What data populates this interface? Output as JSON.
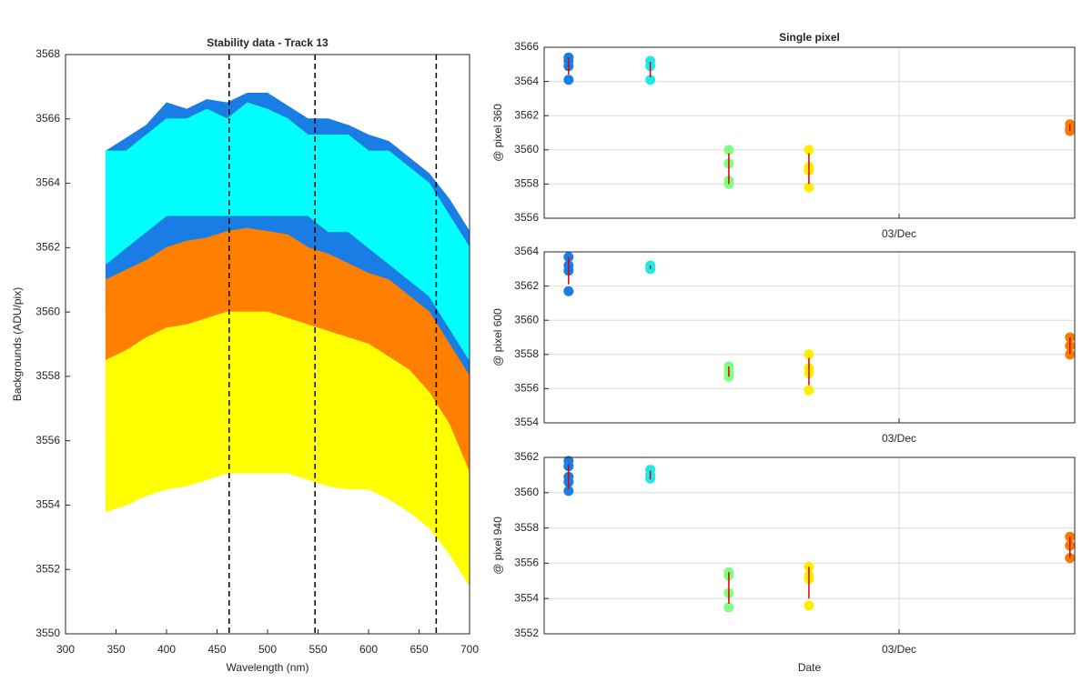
{
  "chart_data": [
    {
      "type": "band",
      "title": "Stability data - Track 13",
      "xlabel": "Wavelength (nm)",
      "ylabel": "Backgrounds (ADU/pix)",
      "x": [
        340,
        360,
        380,
        400,
        420,
        440,
        460,
        480,
        500,
        520,
        540,
        560,
        580,
        600,
        620,
        640,
        660,
        680,
        700
      ],
      "series": [
        {
          "color": "#1a7de6",
          "upper": [
            3565,
            3565.4,
            3565.8,
            3566.5,
            3566.3,
            3566.6,
            3566.5,
            3566.8,
            3566.8,
            3566.4,
            3566,
            3566,
            3565.8,
            3565.5,
            3565.3,
            3564.8,
            3564.3,
            3563.5,
            3562.5
          ],
          "lower": [
            3560,
            3560.5,
            3561,
            3561.5,
            3561.5,
            3561.5,
            3561.5,
            3561.5,
            3561.5,
            3561.5,
            3561.5,
            3561,
            3561,
            3560.5,
            3560,
            3559.5,
            3559,
            3558,
            3557.5
          ]
        },
        {
          "color": "#00ffff",
          "upper": [
            3565,
            3565,
            3565.5,
            3566,
            3566,
            3566.3,
            3566,
            3566.5,
            3566.3,
            3566,
            3565.5,
            3565.5,
            3565.5,
            3565,
            3565,
            3564.5,
            3564,
            3563,
            3562
          ],
          "lower": [
            3561.5,
            3562,
            3562.5,
            3563,
            3563,
            3563,
            3563,
            3563,
            3563,
            3563,
            3563,
            3562.5,
            3562.5,
            3562,
            3561.5,
            3561,
            3560.5,
            3559.5,
            3558.5
          ]
        },
        {
          "color": "#ff8000",
          "upper": [
            3561,
            3561.3,
            3561.6,
            3562,
            3562.2,
            3562.3,
            3562.5,
            3562.6,
            3562.5,
            3562.4,
            3562,
            3561.8,
            3561.5,
            3561.2,
            3561,
            3560.5,
            3560,
            3559,
            3558
          ],
          "lower": [
            3556.5,
            3556.8,
            3557,
            3557.3,
            3557.5,
            3557.5,
            3557.6,
            3557.7,
            3557.7,
            3557.6,
            3557.5,
            3557.3,
            3557,
            3557,
            3556.8,
            3556.5,
            3556,
            3555.5,
            3555
          ]
        },
        {
          "color": "#ffff00",
          "upper": [
            3558.5,
            3558.8,
            3559.2,
            3559.5,
            3559.6,
            3559.8,
            3560,
            3560,
            3560,
            3559.8,
            3559.6,
            3559.4,
            3559.2,
            3559,
            3558.6,
            3558.2,
            3557.5,
            3556.5,
            3555
          ],
          "lower": [
            3553.8,
            3554,
            3554.3,
            3554.5,
            3554.6,
            3554.8,
            3555,
            3555,
            3555,
            3555,
            3554.8,
            3554.6,
            3554.5,
            3554.5,
            3554.2,
            3553.8,
            3553.3,
            3552.5,
            3551.5
          ]
        }
      ],
      "vlines": [
        462,
        547,
        667
      ],
      "xlim": [
        300,
        700
      ],
      "xticks": [
        300,
        350,
        400,
        450,
        500,
        550,
        600,
        650,
        700
      ],
      "ylim": [
        3550,
        3568
      ],
      "yticks": [
        3550,
        3552,
        3554,
        3556,
        3558,
        3560,
        3562,
        3564,
        3566,
        3568
      ],
      "grid": false
    },
    {
      "type": "scatter",
      "title": "Single pixel",
      "ylabel": "@ pixel 360",
      "xlim": [
        0,
        1
      ],
      "xticks": [
        {
          "value": 0.669,
          "label": "03/Dec"
        }
      ],
      "ylim": [
        3556,
        3566
      ],
      "yticks": [
        3556,
        3558,
        3560,
        3562,
        3564,
        3566
      ],
      "grid": true,
      "series": [
        {
          "color": "#1a7de6",
          "x": 0.046,
          "values": [
            3565.4,
            3565.2,
            3564.9,
            3564.1
          ],
          "mean": 3564.9,
          "err": 0.5
        },
        {
          "color": "#1ee8e8",
          "x": 0.2,
          "values": [
            3565.2,
            3564.9,
            3564.1
          ],
          "mean": 3564.7,
          "err": 0.45
        },
        {
          "color": "#80ff80",
          "x": 0.348,
          "values": [
            3560,
            3559.2,
            3558.2,
            3558
          ],
          "mean": 3558.9,
          "err": 0.9
        },
        {
          "color": "#ffee00",
          "x": 0.499,
          "values": [
            3560,
            3559,
            3558.8,
            3557.8
          ],
          "mean": 3558.9,
          "err": 0.9
        },
        {
          "color": "#f57c00",
          "x": 0.991,
          "values": [
            3561.5,
            3561.2,
            3561.1
          ],
          "mean": 3561.3,
          "err": 0.2
        }
      ]
    },
    {
      "type": "scatter",
      "ylabel": "@ pixel 600",
      "xlim": [
        0,
        1
      ],
      "xticks": [
        {
          "value": 0.669,
          "label": "03/Dec"
        }
      ],
      "ylim": [
        3554,
        3564
      ],
      "yticks": [
        3554,
        3556,
        3558,
        3560,
        3562,
        3564
      ],
      "grid": true,
      "series": [
        {
          "color": "#1a7de6",
          "x": 0.046,
          "values": [
            3563.7,
            3563.2,
            3562.9,
            3561.7
          ],
          "mean": 3562.9,
          "err": 0.8
        },
        {
          "color": "#1ee8e8",
          "x": 0.2,
          "values": [
            3563.2,
            3563
          ],
          "mean": 3563.1,
          "err": 0.1
        },
        {
          "color": "#80ff80",
          "x": 0.348,
          "values": [
            3557.3,
            3557,
            3556.7
          ],
          "mean": 3557,
          "err": 0.3
        },
        {
          "color": "#ffee00",
          "x": 0.499,
          "values": [
            3558,
            3557.2,
            3556.9,
            3555.9
          ],
          "mean": 3557,
          "err": 0.8
        },
        {
          "color": "#f57c00",
          "x": 0.991,
          "values": [
            3559,
            3558.5,
            3558
          ],
          "mean": 3558.5,
          "err": 0.5
        }
      ]
    },
    {
      "type": "scatter",
      "ylabel": "@ pixel 940",
      "xlabel": "Date",
      "xlim": [
        0,
        1
      ],
      "xticks": [
        {
          "value": 0.669,
          "label": "03/Dec"
        }
      ],
      "ylim": [
        3552,
        3562
      ],
      "yticks": [
        3552,
        3554,
        3556,
        3558,
        3560,
        3562
      ],
      "grid": true,
      "series": [
        {
          "color": "#1a7de6",
          "x": 0.046,
          "values": [
            3561.8,
            3561.5,
            3560.9,
            3560.6,
            3560.1
          ],
          "mean": 3560.9,
          "err": 0.7
        },
        {
          "color": "#1ee8e8",
          "x": 0.2,
          "values": [
            3561.3,
            3561,
            3560.8
          ],
          "mean": 3561,
          "err": 0.25
        },
        {
          "color": "#80ff80",
          "x": 0.348,
          "values": [
            3555.5,
            3555.3,
            3554.3,
            3553.5
          ],
          "mean": 3554.6,
          "err": 0.9
        },
        {
          "color": "#ffee00",
          "x": 0.499,
          "values": [
            3555.8,
            3555.3,
            3555.1,
            3553.6
          ],
          "mean": 3554.9,
          "err": 0.9
        },
        {
          "color": "#f57c00",
          "x": 0.991,
          "values": [
            3557.5,
            3557,
            3556.3
          ],
          "mean": 3556.9,
          "err": 0.6
        }
      ]
    }
  ]
}
